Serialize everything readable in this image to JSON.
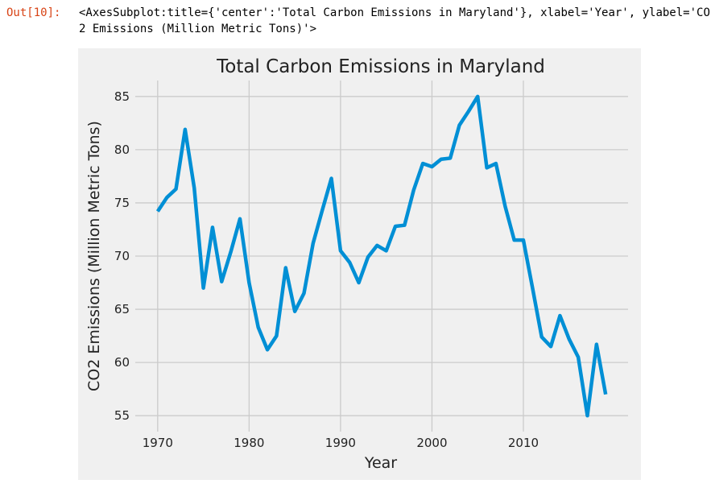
{
  "cell": {
    "prompt": "Out[10]:",
    "repr": "<AxesSubplot:title={'center':'Total Carbon Emissions in Maryland'}, xlabel='Year', ylabel='CO2 Emissions (Million Metric Tons)'>"
  },
  "colors": {
    "figure_bg": "#f0f0f0",
    "grid": "#cbcbcb",
    "line": "#008fd5",
    "prompt": "#d84315"
  },
  "chart_data": {
    "type": "line",
    "title": "Total Carbon Emissions in Maryland",
    "xlabel": "Year",
    "ylabel": "CO2 Emissions (Million Metric Tons)",
    "xlim": [
      1967.55,
      2021.45
    ],
    "ylim": [
      53.5,
      86.5
    ],
    "xticks": [
      1970,
      1980,
      1990,
      2000,
      2010
    ],
    "yticks": [
      55,
      60,
      65,
      70,
      75,
      80,
      85
    ],
    "grid": true,
    "legend": "none",
    "x": [
      1970,
      1971,
      1972,
      1973,
      1974,
      1975,
      1976,
      1977,
      1978,
      1979,
      1980,
      1981,
      1982,
      1983,
      1984,
      1985,
      1986,
      1987,
      1988,
      1989,
      1990,
      1991,
      1992,
      1993,
      1994,
      1995,
      1996,
      1997,
      1998,
      1999,
      2000,
      2001,
      2002,
      2003,
      2004,
      2005,
      2006,
      2007,
      2008,
      2009,
      2010,
      2011,
      2012,
      2013,
      2014,
      2015,
      2016,
      2017,
      2018,
      2019
    ],
    "series": [
      {
        "values": [
          74.2,
          75.5,
          76.3,
          81.9,
          76.4,
          67.0,
          72.7,
          67.6,
          70.4,
          73.5,
          67.5,
          63.3,
          61.2,
          62.5,
          68.9,
          64.8,
          66.5,
          71.2,
          74.3,
          77.3,
          70.5,
          69.4,
          67.5,
          69.9,
          71.0,
          70.5,
          72.8,
          72.9,
          76.2,
          78.7,
          78.4,
          79.1,
          79.2,
          82.3,
          83.6,
          85.0,
          78.3,
          78.7,
          74.7,
          71.5,
          71.5,
          67.0,
          62.4,
          61.5,
          64.4,
          62.2,
          60.5,
          55.0,
          61.7,
          57.0
        ]
      }
    ]
  }
}
